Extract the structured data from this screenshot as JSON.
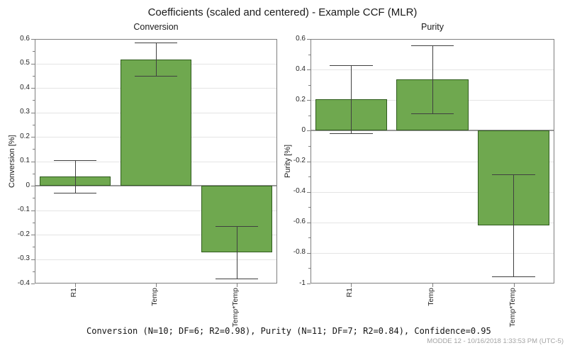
{
  "window": {
    "title": "Coefficients (scaled and centered) - Example CCF (MLR)"
  },
  "footer": {
    "stats": "Conversion (N=10; DF=6; R2=0.98), Purity (N=11; DF=7; R2=0.84), Confidence=0.95",
    "watermark": "MODDE 12 - 10/16/2018 1:33:53 PM (UTC-5)"
  },
  "colors": {
    "bar_fill": "#6FA84F",
    "bar_border": "#2F5B1D",
    "error_bar": "#404040",
    "grid_line": "#E4E4E4",
    "zero_line": "#989898",
    "frame": "#7F7F7F",
    "text": "#1A1A1A",
    "tick_text": "#262626",
    "watermark_text": "#A3A3A3"
  },
  "chart_data": [
    {
      "type": "bar",
      "title": "Conversion",
      "ylabel": "Conversion [%]",
      "categories": [
        "R1",
        "Temp",
        "Temp*Temp"
      ],
      "values": [
        0.037,
        0.517,
        -0.272
      ],
      "ci_low": [
        -0.03,
        0.45,
        -0.379
      ],
      "ci_high": [
        0.105,
        0.585,
        -0.166
      ],
      "confidence": 0.95,
      "ylim": [
        -0.4,
        0.6
      ],
      "ytick_step": 0.1,
      "minor_tick_step": 0.05,
      "grid": true,
      "legend": "none"
    },
    {
      "type": "bar",
      "title": "Purity",
      "ylabel": "Purity [%]",
      "categories": [
        "R1",
        "Temp",
        "Temp*Temp"
      ],
      "values": [
        0.205,
        0.335,
        -0.62
      ],
      "ci_low": [
        -0.018,
        0.112,
        -0.953
      ],
      "ci_high": [
        0.428,
        0.558,
        -0.287
      ],
      "confidence": 0.95,
      "ylim": [
        -1.0,
        0.6
      ],
      "ytick_step": 0.2,
      "minor_tick_step": 0.1,
      "grid": true,
      "legend": "none"
    }
  ]
}
